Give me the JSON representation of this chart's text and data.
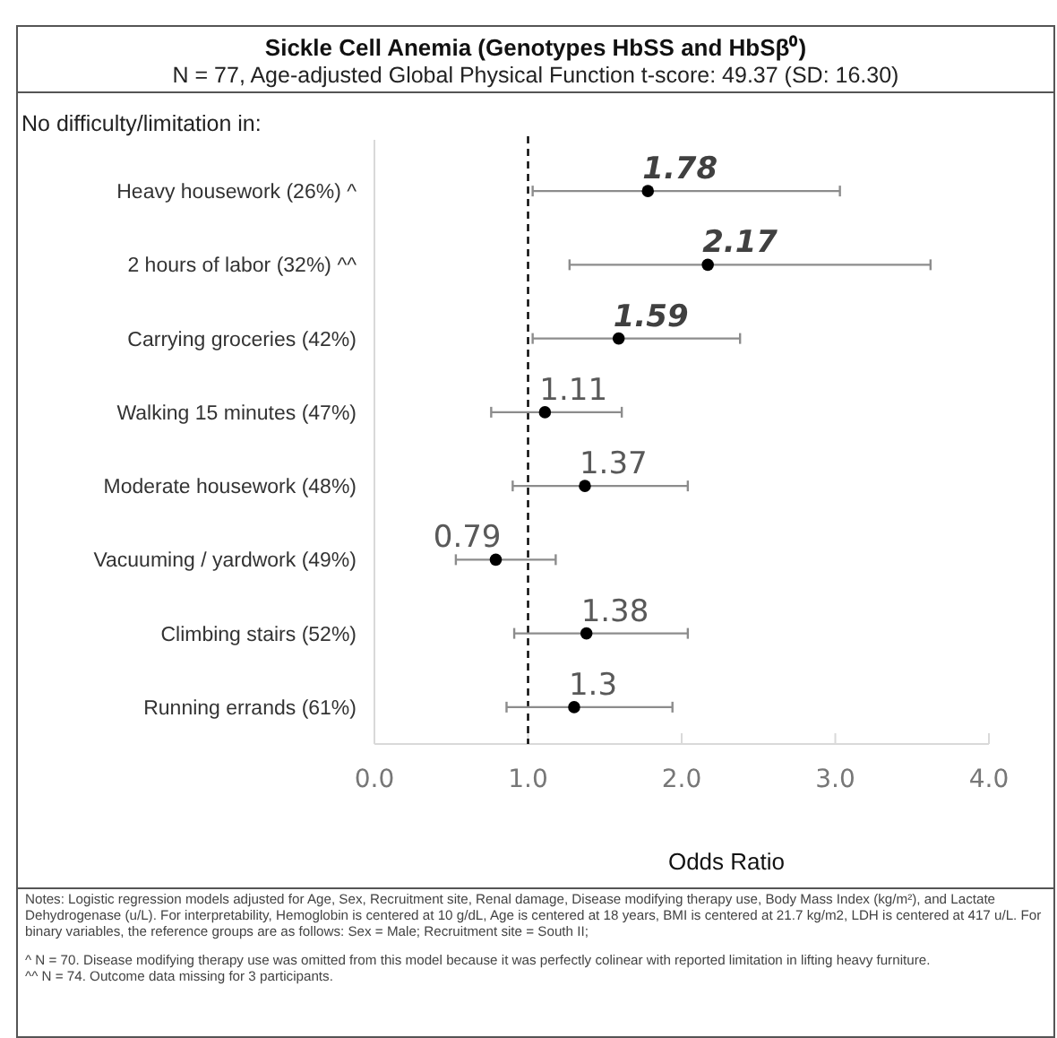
{
  "chart_data": {
    "type": "scatter",
    "orientation": "horizontal",
    "title": "Sickle Cell Anemia (Genotypes HbSS and HbSβ⁰)",
    "subtitle": "N = 77, Age-adjusted Global Physical Function t-score: 49.37 (SD: 16.30)",
    "xlabel": "Odds Ratio",
    "categories": [
      "Heavy housework (26%) ^",
      "2 hours of labor (32%) ^^",
      "Carrying groceries (42%)",
      "Walking 15 minutes (47%)",
      "Moderate housework (48%)",
      "Vacuuming / yardwork (49%)",
      "Climbing stairs (52%)",
      "Running errands (61%)"
    ],
    "values": [
      1.78,
      2.17,
      1.59,
      1.11,
      1.37,
      0.79,
      1.38,
      1.3
    ],
    "errors": [
      [
        1.03,
        3.03
      ],
      [
        1.27,
        3.62
      ],
      [
        1.03,
        2.38
      ],
      [
        0.76,
        1.61
      ],
      [
        0.9,
        2.04
      ],
      [
        0.53,
        1.18
      ],
      [
        0.91,
        2.04
      ],
      [
        0.86,
        1.94
      ]
    ],
    "color": "#000000",
    "marker": "circle",
    "data_labels": true,
    "xlim": [
      0,
      4
    ],
    "xticks": [
      {
        "value": 0,
        "label": "0.0"
      },
      {
        "value": 1,
        "label": "1.0"
      },
      {
        "value": 2,
        "label": "2.0"
      },
      {
        "value": 3,
        "label": "3.0"
      },
      {
        "value": 4,
        "label": "4.0"
      }
    ],
    "ref_lines": [
      {
        "axis": "x",
        "value": 1,
        "line_style": "dashed",
        "color": "#000000"
      }
    ],
    "annotations": [
      "No difficulty/limitation in:",
      "Notes: Logistic regression models adjusted for Age, Sex, Recruitment site, Renal damage, Disease modifying therapy use, Body Mass Index (kg/m²), and Lactate Dehydrogenase (u/L). For interpretability, Hemoglobin is centered at 10 g/dL, Age is centered at 18 years, BMI is centered at 21.7 kg/m2, LDH is centered at 417 u/L. For binary variables, the reference groups are as follows: Sex = Male; Recruitment site = South II;",
      "^ N = 70. Disease modifying therapy use was omitted from this model because it was perfectly colinear with reported limitation in lifting heavy furniture.",
      "^^ N = 74. Outcome data missing for 3 participants."
    ]
  }
}
